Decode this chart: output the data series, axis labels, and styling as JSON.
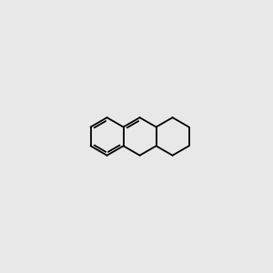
{
  "background_color": "#e8e8e8",
  "bond_color": "#000000",
  "O_color": "#ff0000",
  "N_color": "#0000ff",
  "font_size": 7.5,
  "lw": 1.3
}
